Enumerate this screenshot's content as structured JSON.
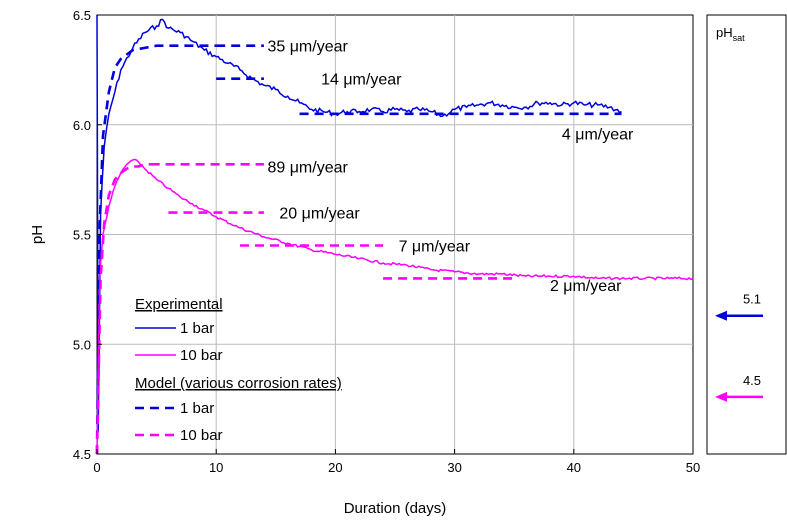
{
  "chart_data": {
    "type": "line",
    "xlabel": "Duration (days)",
    "ylabel": "pH",
    "xlim": [
      0,
      50
    ],
    "ylim": [
      4.5,
      6.5
    ],
    "x_ticks": [
      "0",
      "10",
      "20",
      "30",
      "40",
      "50"
    ],
    "y_ticks": [
      "4.5",
      "5.0",
      "5.5",
      "6.0",
      "6.5"
    ],
    "grid": true,
    "series": [
      {
        "name": "1 bar",
        "group": "Experimental",
        "style": "solid",
        "color": "#0000dd",
        "x": [
          0,
          0.1,
          0.3,
          0.6,
          1,
          1.5,
          2,
          3,
          4,
          5,
          5.5,
          6,
          7,
          8,
          9,
          10,
          11,
          12,
          13,
          14,
          15,
          16,
          17,
          18,
          19,
          20,
          21,
          22,
          23,
          24,
          25,
          26,
          27,
          28,
          29,
          30,
          31,
          32,
          33,
          34,
          35,
          36,
          37,
          38,
          39,
          40,
          41,
          42,
          43,
          44
        ],
        "y": [
          6.5,
          4.6,
          5.6,
          5.9,
          6.05,
          6.15,
          6.25,
          6.35,
          6.42,
          6.45,
          6.48,
          6.44,
          6.42,
          6.38,
          6.34,
          6.31,
          6.28,
          6.25,
          6.21,
          6.18,
          6.16,
          6.13,
          6.1,
          6.07,
          6.06,
          6.05,
          6.06,
          6.06,
          6.07,
          6.06,
          6.07,
          6.06,
          6.07,
          6.06,
          6.04,
          6.07,
          6.08,
          6.09,
          6.1,
          6.09,
          6.08,
          6.08,
          6.1,
          6.1,
          6.09,
          6.1,
          6.09,
          6.09,
          6.08,
          6.06
        ]
      },
      {
        "name": "10 bar",
        "group": "Experimental",
        "style": "solid",
        "color": "#ff00ff",
        "x": [
          0,
          0.2,
          0.5,
          1,
          1.5,
          2,
          2.5,
          3,
          3.5,
          4,
          5,
          6,
          7,
          8,
          9,
          10,
          12,
          14,
          16,
          18,
          20,
          22,
          24,
          26,
          28,
          30,
          32,
          34,
          36,
          38,
          40,
          42,
          44,
          46,
          48,
          50
        ],
        "y": [
          4.5,
          5.3,
          5.5,
          5.63,
          5.72,
          5.78,
          5.82,
          5.84,
          5.83,
          5.8,
          5.75,
          5.71,
          5.67,
          5.64,
          5.61,
          5.58,
          5.53,
          5.49,
          5.46,
          5.43,
          5.41,
          5.39,
          5.37,
          5.36,
          5.34,
          5.33,
          5.32,
          5.32,
          5.31,
          5.31,
          5.31,
          5.3,
          5.3,
          5.3,
          5.3,
          5.3
        ]
      },
      {
        "name": "1 bar",
        "group": "Model (various corrosion rates)",
        "style": "dashed",
        "color": "#0000dd",
        "x": [
          0,
          0.2,
          0.5,
          1,
          1.5,
          2,
          2.5,
          3,
          4,
          5,
          6,
          7,
          8,
          9,
          10
        ],
        "y": [
          4.5,
          5.5,
          5.95,
          6.15,
          6.26,
          6.3,
          6.32,
          6.34,
          6.35,
          6.36,
          6.36,
          6.36,
          6.36,
          6.36,
          6.36
        ],
        "segments": [
          {
            "x": [
              10,
              14
            ],
            "y": [
              6.36,
              6.36
            ]
          },
          {
            "x": [
              10,
              14
            ],
            "y": [
              6.21,
              6.21
            ]
          },
          {
            "x": [
              17,
              44
            ],
            "y": [
              6.05,
              6.05
            ]
          }
        ]
      },
      {
        "name": "10 bar",
        "group": "Model (various corrosion rates)",
        "style": "dashed",
        "color": "#ff00ff",
        "x": [
          0,
          0.3,
          0.6,
          1,
          1.5,
          2,
          2.5,
          3,
          3.5,
          4,
          4.5
        ],
        "y": [
          4.5,
          5.3,
          5.55,
          5.68,
          5.75,
          5.78,
          5.8,
          5.81,
          5.81,
          5.82,
          5.82
        ],
        "segments": [
          {
            "x": [
              4.5,
              14
            ],
            "y": [
              5.82,
              5.82
            ]
          },
          {
            "x": [
              6,
              14
            ],
            "y": [
              5.6,
              5.6
            ]
          },
          {
            "x": [
              12,
              24
            ],
            "y": [
              5.45,
              5.45
            ]
          },
          {
            "x": [
              24,
              35
            ],
            "y": [
              5.3,
              5.3
            ]
          }
        ]
      }
    ],
    "annotations": [
      {
        "text": "35 μm/year",
        "x": 14.3,
        "y": 6.36
      },
      {
        "text": "14 μm/year",
        "x": 18.8,
        "y": 6.21
      },
      {
        "text": "4 μm/year",
        "x": 39,
        "y": 5.96
      },
      {
        "text": "89 μm/year",
        "x": 14.3,
        "y": 5.81
      },
      {
        "text": "20 μm/year",
        "x": 15.3,
        "y": 5.6
      },
      {
        "text": "7 μm/year",
        "x": 25.3,
        "y": 5.45
      },
      {
        "text": "2 μm/year",
        "x": 38,
        "y": 5.27
      }
    ],
    "legend": {
      "placement": "bottom-left",
      "group1_title": "Experimental",
      "group2_title": "Model (various corrosion rates)",
      "entries": [
        "1 bar",
        "10 bar",
        "1 bar",
        "10 bar"
      ]
    },
    "side_panel": {
      "title_main": "pH",
      "title_sub": "sat",
      "markers": [
        {
          "label": "5.1",
          "y": 5.13,
          "color": "#0000dd"
        },
        {
          "label": "4.5",
          "y": 4.76,
          "color": "#ff00ff"
        }
      ]
    }
  }
}
